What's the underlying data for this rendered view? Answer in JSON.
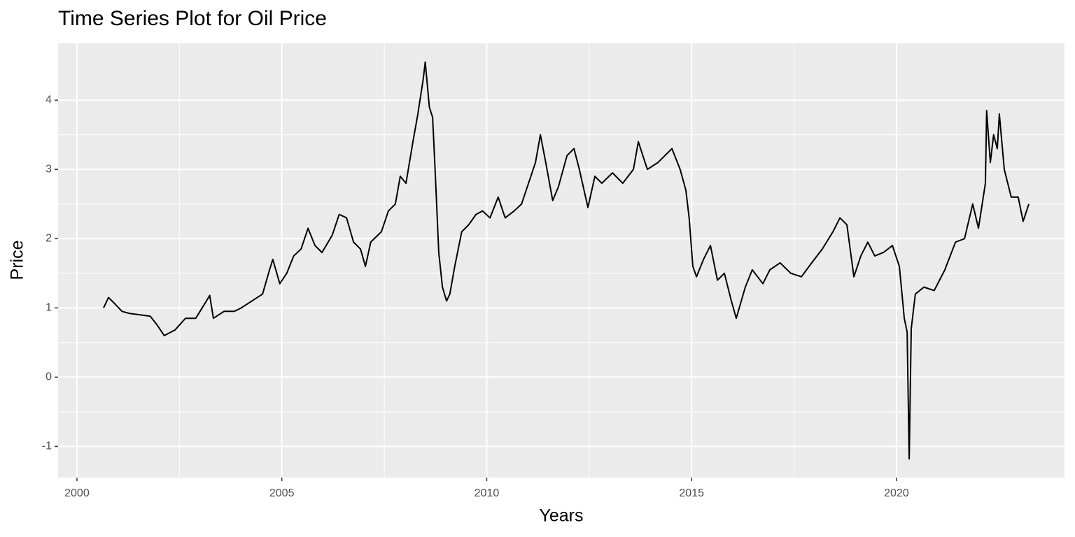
{
  "chart_data": {
    "type": "line",
    "title": "Time Series Plot for Oil Price",
    "x_label": "Years",
    "y_label": "Price",
    "x": [
      2000.65,
      2000.77,
      2000.94,
      2001.1,
      2001.28,
      2001.54,
      2001.79,
      2001.96,
      2002.13,
      2002.39,
      2002.65,
      2002.9,
      2003.16,
      2003.24,
      2003.33,
      2003.59,
      2003.84,
      2004.01,
      2004.27,
      2004.53,
      2004.7,
      2004.78,
      2004.95,
      2005.12,
      2005.29,
      2005.47,
      2005.64,
      2005.81,
      2005.98,
      2006.23,
      2006.4,
      2006.58,
      2006.75,
      2006.92,
      2007.04,
      2007.17,
      2007.43,
      2007.6,
      2007.77,
      2007.89,
      2008.03,
      2008.2,
      2008.32,
      2008.45,
      2008.5,
      2008.6,
      2008.68,
      2008.74,
      2008.83,
      2008.92,
      2009.02,
      2009.1,
      2009.22,
      2009.39,
      2009.56,
      2009.74,
      2009.9,
      2010.08,
      2010.28,
      2010.45,
      2010.67,
      2010.85,
      2011.02,
      2011.19,
      2011.31,
      2011.44,
      2011.61,
      2011.75,
      2011.96,
      2012.13,
      2012.26,
      2012.47,
      2012.64,
      2012.81,
      2013.07,
      2013.32,
      2013.58,
      2013.7,
      2013.92,
      2014.18,
      2014.35,
      2014.52,
      2014.72,
      2014.86,
      2014.94,
      2015.03,
      2015.12,
      2015.29,
      2015.46,
      2015.63,
      2015.8,
      2015.97,
      2016.09,
      2016.31,
      2016.48,
      2016.74,
      2016.91,
      2017.16,
      2017.42,
      2017.68,
      2017.93,
      2018.19,
      2018.45,
      2018.62,
      2018.79,
      2018.96,
      2019.13,
      2019.3,
      2019.47,
      2019.68,
      2019.9,
      2020.07,
      2020.19,
      2020.26,
      2020.31,
      2020.36,
      2020.46,
      2020.67,
      2020.92,
      2021.18,
      2021.44,
      2021.66,
      2021.86,
      2022.0,
      2022.17,
      2022.2,
      2022.29,
      2022.37,
      2022.46,
      2022.51,
      2022.63,
      2022.8,
      2022.97,
      2023.09,
      2023.23
    ],
    "values": [
      1.0,
      1.15,
      1.05,
      0.95,
      0.92,
      0.9,
      0.88,
      0.75,
      0.6,
      0.68,
      0.85,
      0.85,
      1.1,
      1.18,
      0.85,
      0.95,
      0.95,
      1.0,
      1.1,
      1.2,
      1.55,
      1.7,
      1.35,
      1.5,
      1.75,
      1.85,
      2.15,
      1.9,
      1.8,
      2.05,
      2.35,
      2.3,
      1.95,
      1.85,
      1.6,
      1.95,
      2.1,
      2.4,
      2.5,
      2.9,
      2.8,
      3.4,
      3.8,
      4.3,
      4.55,
      3.9,
      3.75,
      3.0,
      1.8,
      1.3,
      1.1,
      1.2,
      1.6,
      2.1,
      2.2,
      2.35,
      2.4,
      2.3,
      2.6,
      2.3,
      2.4,
      2.5,
      2.8,
      3.1,
      3.5,
      3.1,
      2.55,
      2.75,
      3.2,
      3.3,
      3.0,
      2.45,
      2.9,
      2.8,
      2.95,
      2.8,
      3.0,
      3.4,
      3.0,
      3.1,
      3.2,
      3.3,
      3.0,
      2.7,
      2.3,
      1.6,
      1.45,
      1.7,
      1.9,
      1.4,
      1.5,
      1.1,
      0.85,
      1.3,
      1.55,
      1.35,
      1.55,
      1.65,
      1.5,
      1.45,
      1.65,
      1.85,
      2.1,
      2.3,
      2.2,
      1.45,
      1.75,
      1.95,
      1.75,
      1.8,
      1.9,
      1.6,
      0.85,
      0.65,
      -1.18,
      0.7,
      1.2,
      1.3,
      1.25,
      1.55,
      1.95,
      2.0,
      2.5,
      2.15,
      2.8,
      3.85,
      3.1,
      3.5,
      3.3,
      3.8,
      3.0,
      2.6,
      2.6,
      2.25,
      2.5
    ],
    "color": "#000000",
    "xlim": [
      1999.54,
      2024.1
    ],
    "xticks": [
      2000,
      2005,
      2010,
      2015,
      2020
    ],
    "ylim": [
      -1.45,
      4.82
    ],
    "yticks": [
      -1,
      0,
      1,
      2,
      3,
      4
    ],
    "grid": true
  }
}
